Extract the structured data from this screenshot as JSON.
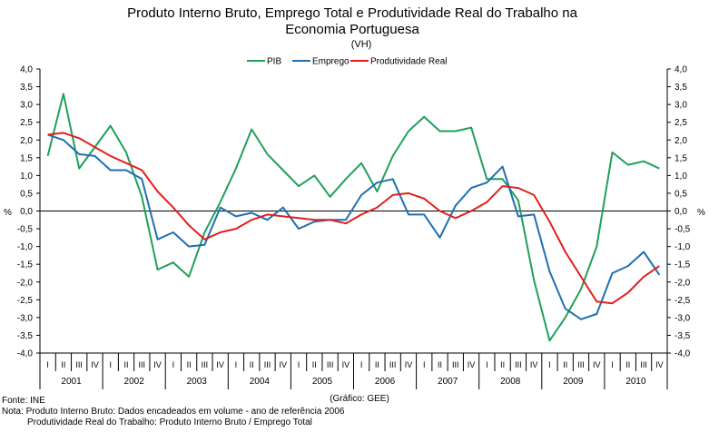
{
  "chart_data": {
    "type": "line",
    "title_line1": "Produto Interno Bruto, Emprego Total e Produtividade Real do Trabalho na",
    "title_line2": "Economia Portuguesa",
    "subtitle": "(VH)",
    "ylabel": "%",
    "ylim": [
      -4.0,
      4.0
    ],
    "ytick_step": 0.5,
    "yticks": [
      "4,0",
      "3,5",
      "3,0",
      "2,5",
      "2,0",
      "1,5",
      "1,0",
      "0,5",
      "0,0",
      "-0,5",
      "-1,0",
      "-1,5",
      "-2,0",
      "-2,5",
      "-3,0",
      "-3,5",
      "-4,0"
    ],
    "quarter_labels": [
      "I",
      "II",
      "III",
      "IV"
    ],
    "years": [
      "2001",
      "2002",
      "2003",
      "2004",
      "2005",
      "2006",
      "2007",
      "2008",
      "2009",
      "2010"
    ],
    "source_note": "(Gráfico: GEE)",
    "legend_position": "top-center",
    "series": [
      {
        "name": "PIB",
        "color": "#1fa05a",
        "values": [
          1.55,
          3.3,
          1.2,
          1.8,
          2.4,
          1.65,
          0.4,
          -1.65,
          -1.45,
          -1.85,
          -0.6,
          0.25,
          1.2,
          2.3,
          1.6,
          1.15,
          0.7,
          1.0,
          0.4,
          0.9,
          1.35,
          0.55,
          1.55,
          2.25,
          2.65,
          2.25,
          2.25,
          2.35,
          0.9,
          0.9,
          0.3,
          -1.95,
          -3.65,
          -3.0,
          -2.2,
          -1.0,
          1.65,
          1.3,
          1.4,
          1.2
        ]
      },
      {
        "name": "Emprego",
        "color": "#1f6fb2",
        "values": [
          2.15,
          2.0,
          1.6,
          1.55,
          1.15,
          1.15,
          0.9,
          -0.8,
          -0.6,
          -1.0,
          -0.95,
          0.1,
          -0.15,
          -0.05,
          -0.25,
          0.1,
          -0.5,
          -0.3,
          -0.25,
          -0.25,
          0.45,
          0.8,
          0.9,
          -0.1,
          -0.1,
          -0.75,
          0.15,
          0.65,
          0.8,
          1.25,
          -0.15,
          -0.1,
          -1.7,
          -2.75,
          -3.05,
          -2.9,
          -1.75,
          -1.55,
          -1.15,
          -1.8
        ]
      },
      {
        "name": "Produtividade Real",
        "color": "#e0201c",
        "values": [
          2.15,
          2.2,
          2.05,
          1.8,
          1.55,
          1.35,
          1.15,
          0.55,
          0.1,
          -0.4,
          -0.8,
          -0.6,
          -0.5,
          -0.25,
          -0.1,
          -0.15,
          -0.2,
          -0.25,
          -0.25,
          -0.35,
          -0.1,
          0.1,
          0.45,
          0.5,
          0.35,
          0.0,
          -0.2,
          0.0,
          0.25,
          0.7,
          0.65,
          0.45,
          -0.3,
          -1.15,
          -1.85,
          -2.55,
          -2.6,
          -2.3,
          -1.85,
          -1.55
        ]
      }
    ]
  },
  "footer": {
    "source": "Fonte: INE",
    "note1": "Nota: Produto Interno Bruto: Dados encadeados em volume - ano de referência 2006",
    "note2": "Produtividade Real do Trabalho: Produto Interno Bruto / Emprego Total"
  }
}
